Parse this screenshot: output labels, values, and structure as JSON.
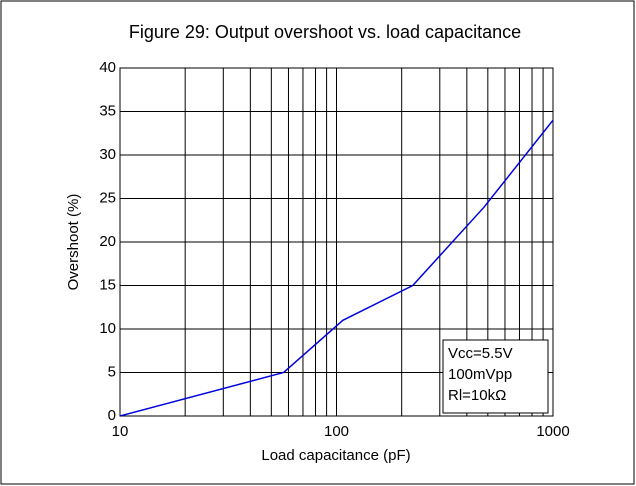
{
  "chart_data": {
    "type": "line",
    "title": "Figure 29: Output overshoot vs. load capacitance",
    "xlabel": "Load capacitance (pF)",
    "ylabel": "Overshoot (%)",
    "xscale": "log",
    "grid": true,
    "xlim": [
      10,
      1000
    ],
    "xticks": [
      10,
      100,
      1000
    ],
    "xminorticks": [
      20,
      30,
      40,
      50,
      60,
      70,
      80,
      90,
      200,
      300,
      400,
      500,
      600,
      700,
      800,
      900
    ],
    "ylim": [
      0,
      40
    ],
    "yticks": [
      0,
      5,
      10,
      15,
      20,
      25,
      30,
      35,
      40
    ],
    "series": [
      {
        "name": "Overshoot",
        "color": "#0000dd",
        "x": [
          10,
          57,
          107,
          225,
          480,
          1000
        ],
        "values": [
          0,
          5,
          11,
          15,
          24,
          34
        ]
      }
    ],
    "annotation": [
      "Vcc=5.5V",
      "100mVpp",
      "Rl=10kΩ"
    ]
  }
}
